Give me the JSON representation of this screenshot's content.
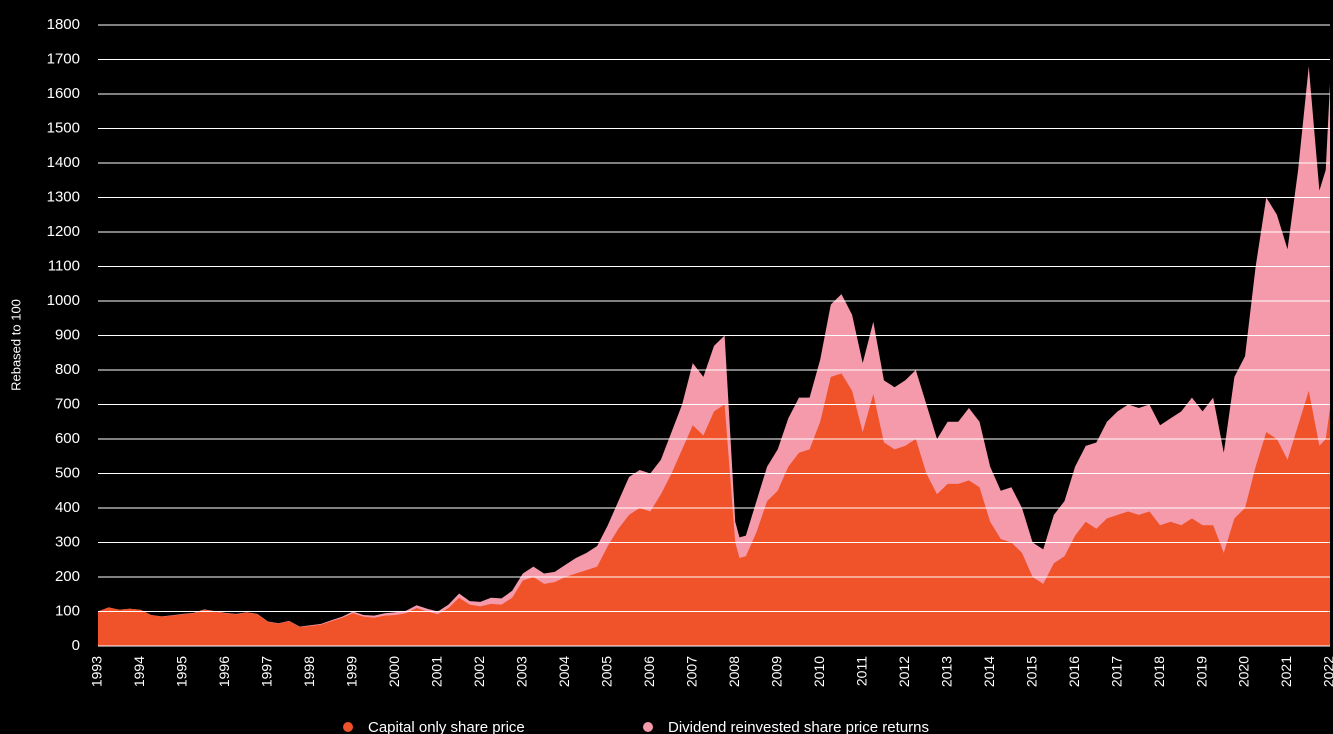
{
  "chart_data": {
    "type": "area",
    "ylabel": "Rebased to 100",
    "x": [
      1993,
      1993.25,
      1993.5,
      1993.75,
      1994,
      1994.25,
      1994.5,
      1994.75,
      1995,
      1995.25,
      1995.5,
      1995.75,
      1996,
      1996.25,
      1996.5,
      1996.75,
      1997,
      1997.25,
      1997.5,
      1997.75,
      1998,
      1998.25,
      1998.5,
      1998.75,
      1999,
      1999.25,
      1999.5,
      1999.75,
      2000,
      2000.25,
      2000.5,
      2000.75,
      2001,
      2001.25,
      2001.5,
      2001.75,
      2002,
      2002.25,
      2002.5,
      2002.75,
      2003,
      2003.25,
      2003.5,
      2003.75,
      2004,
      2004.25,
      2004.5,
      2004.75,
      2005,
      2005.25,
      2005.5,
      2005.75,
      2006,
      2006.25,
      2006.5,
      2006.75,
      2007,
      2007.25,
      2007.5,
      2007.75,
      2008,
      2008.1,
      2008.25,
      2008.5,
      2008.75,
      2009,
      2009.25,
      2009.5,
      2009.75,
      2010,
      2010.25,
      2010.5,
      2010.75,
      2011,
      2011.25,
      2011.5,
      2011.75,
      2012,
      2012.25,
      2012.5,
      2012.75,
      2013,
      2013.25,
      2013.5,
      2013.75,
      2014,
      2014.25,
      2014.5,
      2014.75,
      2015,
      2015.25,
      2015.5,
      2015.75,
      2016,
      2016.25,
      2016.5,
      2016.75,
      2017,
      2017.25,
      2017.5,
      2017.75,
      2018,
      2018.25,
      2018.5,
      2018.75,
      2019,
      2019.25,
      2019.5,
      2019.75,
      2020,
      2020.25,
      2020.5,
      2020.75,
      2021,
      2021.25,
      2021.5,
      2021.75,
      2021.9,
      2022
    ],
    "series": [
      {
        "name": "Dividend reinvested share price returns",
        "color": "#f49aaa",
        "values": [
          100,
          112,
          105,
          108,
          105,
          90,
          86,
          89,
          93,
          96,
          106,
          101,
          96,
          93,
          98,
          93,
          71,
          66,
          73,
          56,
          60,
          64,
          75,
          85,
          100,
          90,
          88,
          95,
          98,
          102,
          118,
          108,
          100,
          120,
          152,
          130,
          128,
          140,
          138,
          160,
          210,
          230,
          210,
          215,
          235,
          255,
          270,
          290,
          350,
          420,
          490,
          510,
          500,
          540,
          620,
          700,
          820,
          780,
          870,
          900,
          360,
          315,
          320,
          420,
          520,
          570,
          660,
          720,
          720,
          830,
          990,
          1020,
          960,
          820,
          940,
          770,
          750,
          770,
          800,
          700,
          600,
          650,
          650,
          690,
          650,
          520,
          450,
          460,
          400,
          300,
          280,
          380,
          420,
          520,
          580,
          590,
          650,
          680,
          700,
          690,
          700,
          640,
          660,
          680,
          720,
          680,
          720,
          560,
          780,
          840,
          1100,
          1300,
          1250,
          1150,
          1380,
          1680,
          1320,
          1380,
          1630
        ]
      },
      {
        "name": "Capital only share price",
        "color": "#f0522a",
        "values": [
          100,
          112,
          105,
          108,
          105,
          90,
          85,
          88,
          92,
          95,
          105,
          100,
          95,
          92,
          97,
          92,
          70,
          65,
          72,
          55,
          58,
          62,
          72,
          82,
          95,
          85,
          82,
          88,
          90,
          95,
          110,
          100,
          92,
          110,
          140,
          120,
          115,
          122,
          120,
          140,
          190,
          200,
          180,
          185,
          200,
          210,
          220,
          230,
          290,
          340,
          380,
          400,
          390,
          440,
          500,
          570,
          640,
          610,
          680,
          700,
          300,
          255,
          260,
          330,
          420,
          450,
          520,
          560,
          570,
          650,
          780,
          790,
          740,
          620,
          730,
          590,
          570,
          580,
          600,
          500,
          440,
          470,
          470,
          480,
          460,
          360,
          310,
          300,
          270,
          200,
          180,
          240,
          260,
          320,
          360,
          340,
          370,
          380,
          390,
          380,
          390,
          350,
          360,
          350,
          370,
          350,
          350,
          270,
          370,
          400,
          520,
          620,
          600,
          540,
          640,
          740,
          580,
          600,
          690
        ]
      }
    ],
    "xlim": [
      1993,
      2022
    ],
    "xticks": [
      1993,
      1994,
      1995,
      1996,
      1997,
      1998,
      1999,
      2000,
      2001,
      2002,
      2003,
      2004,
      2005,
      2006,
      2007,
      2008,
      2009,
      2010,
      2011,
      2012,
      2013,
      2014,
      2015,
      2016,
      2017,
      2018,
      2019,
      2020,
      2021,
      2022
    ],
    "ylim": [
      0,
      1800
    ],
    "yticks": [
      0,
      100,
      200,
      300,
      400,
      500,
      600,
      700,
      800,
      900,
      1000,
      1100,
      1200,
      1300,
      1400,
      1500,
      1600,
      1700,
      1800
    ],
    "grid": true,
    "legend": "bottom"
  }
}
